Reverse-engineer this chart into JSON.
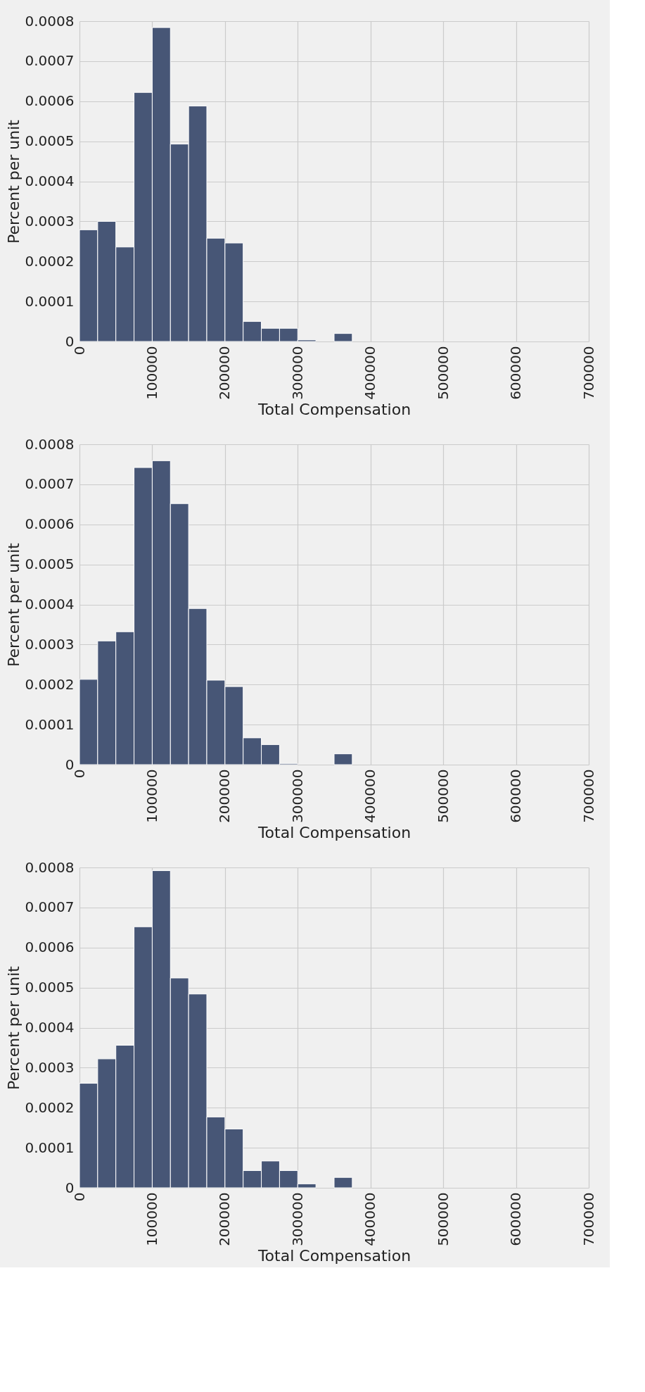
{
  "chart_data": [
    {
      "type": "histogram",
      "xlabel": "Total Compensation",
      "ylabel": "Percent per unit",
      "color": "#475676",
      "bins": [
        0,
        25000,
        50000,
        75000,
        100000,
        125000,
        150000,
        175000,
        200000,
        225000,
        250000,
        275000,
        300000,
        325000,
        350000,
        375000
      ],
      "values": [
        0.000279,
        0.0003,
        0.000236,
        0.000622,
        0.000784,
        0.000493,
        0.000588,
        0.000258,
        0.000246,
        5e-05,
        3.3e-05,
        3.3e-05,
        4e-06,
        0,
        2e-05
      ],
      "xlim": [
        0,
        700000
      ],
      "xticks": [
        0,
        100000,
        200000,
        300000,
        400000,
        500000,
        600000,
        700000
      ],
      "ylim": [
        0,
        0.0008
      ],
      "yticks": [
        0,
        0.0001,
        0.0002,
        0.0003,
        0.0004,
        0.0005,
        0.0006,
        0.0007,
        0.0008
      ],
      "grid": true
    },
    {
      "type": "histogram",
      "xlabel": "Total Compensation",
      "ylabel": "Percent per unit",
      "color": "#475676",
      "bins": [
        0,
        25000,
        50000,
        75000,
        100000,
        125000,
        150000,
        175000,
        200000,
        225000,
        250000,
        275000,
        300000,
        325000,
        350000,
        375000
      ],
      "values": [
        0.000213,
        0.000309,
        0.000332,
        0.000742,
        0.000759,
        0.000652,
        0.00039,
        0.000211,
        0.000195,
        6.7e-05,
        5e-05,
        3e-06,
        0,
        0,
        2.7e-05
      ],
      "xlim": [
        0,
        700000
      ],
      "xticks": [
        0,
        100000,
        200000,
        300000,
        400000,
        500000,
        600000,
        700000
      ],
      "ylim": [
        0,
        0.0008
      ],
      "yticks": [
        0,
        0.0001,
        0.0002,
        0.0003,
        0.0004,
        0.0005,
        0.0006,
        0.0007,
        0.0008
      ],
      "grid": true
    },
    {
      "type": "histogram",
      "xlabel": "Total Compensation",
      "ylabel": "Percent per unit",
      "color": "#475676",
      "bins": [
        0,
        25000,
        50000,
        75000,
        100000,
        125000,
        150000,
        175000,
        200000,
        225000,
        250000,
        275000,
        300000,
        325000,
        350000,
        375000
      ],
      "values": [
        0.000261,
        0.000322,
        0.000356,
        0.000652,
        0.000792,
        0.000524,
        0.000484,
        0.000177,
        0.000147,
        4.3e-05,
        6.7e-05,
        4.3e-05,
        1e-05,
        0,
        2.6e-05
      ],
      "xlim": [
        0,
        700000
      ],
      "xticks": [
        0,
        100000,
        200000,
        300000,
        400000,
        500000,
        600000,
        700000
      ],
      "ylim": [
        0,
        0.0008
      ],
      "yticks": [
        0,
        0.0001,
        0.0002,
        0.0003,
        0.0004,
        0.0005,
        0.0006,
        0.0007,
        0.0008
      ],
      "grid": true
    }
  ]
}
